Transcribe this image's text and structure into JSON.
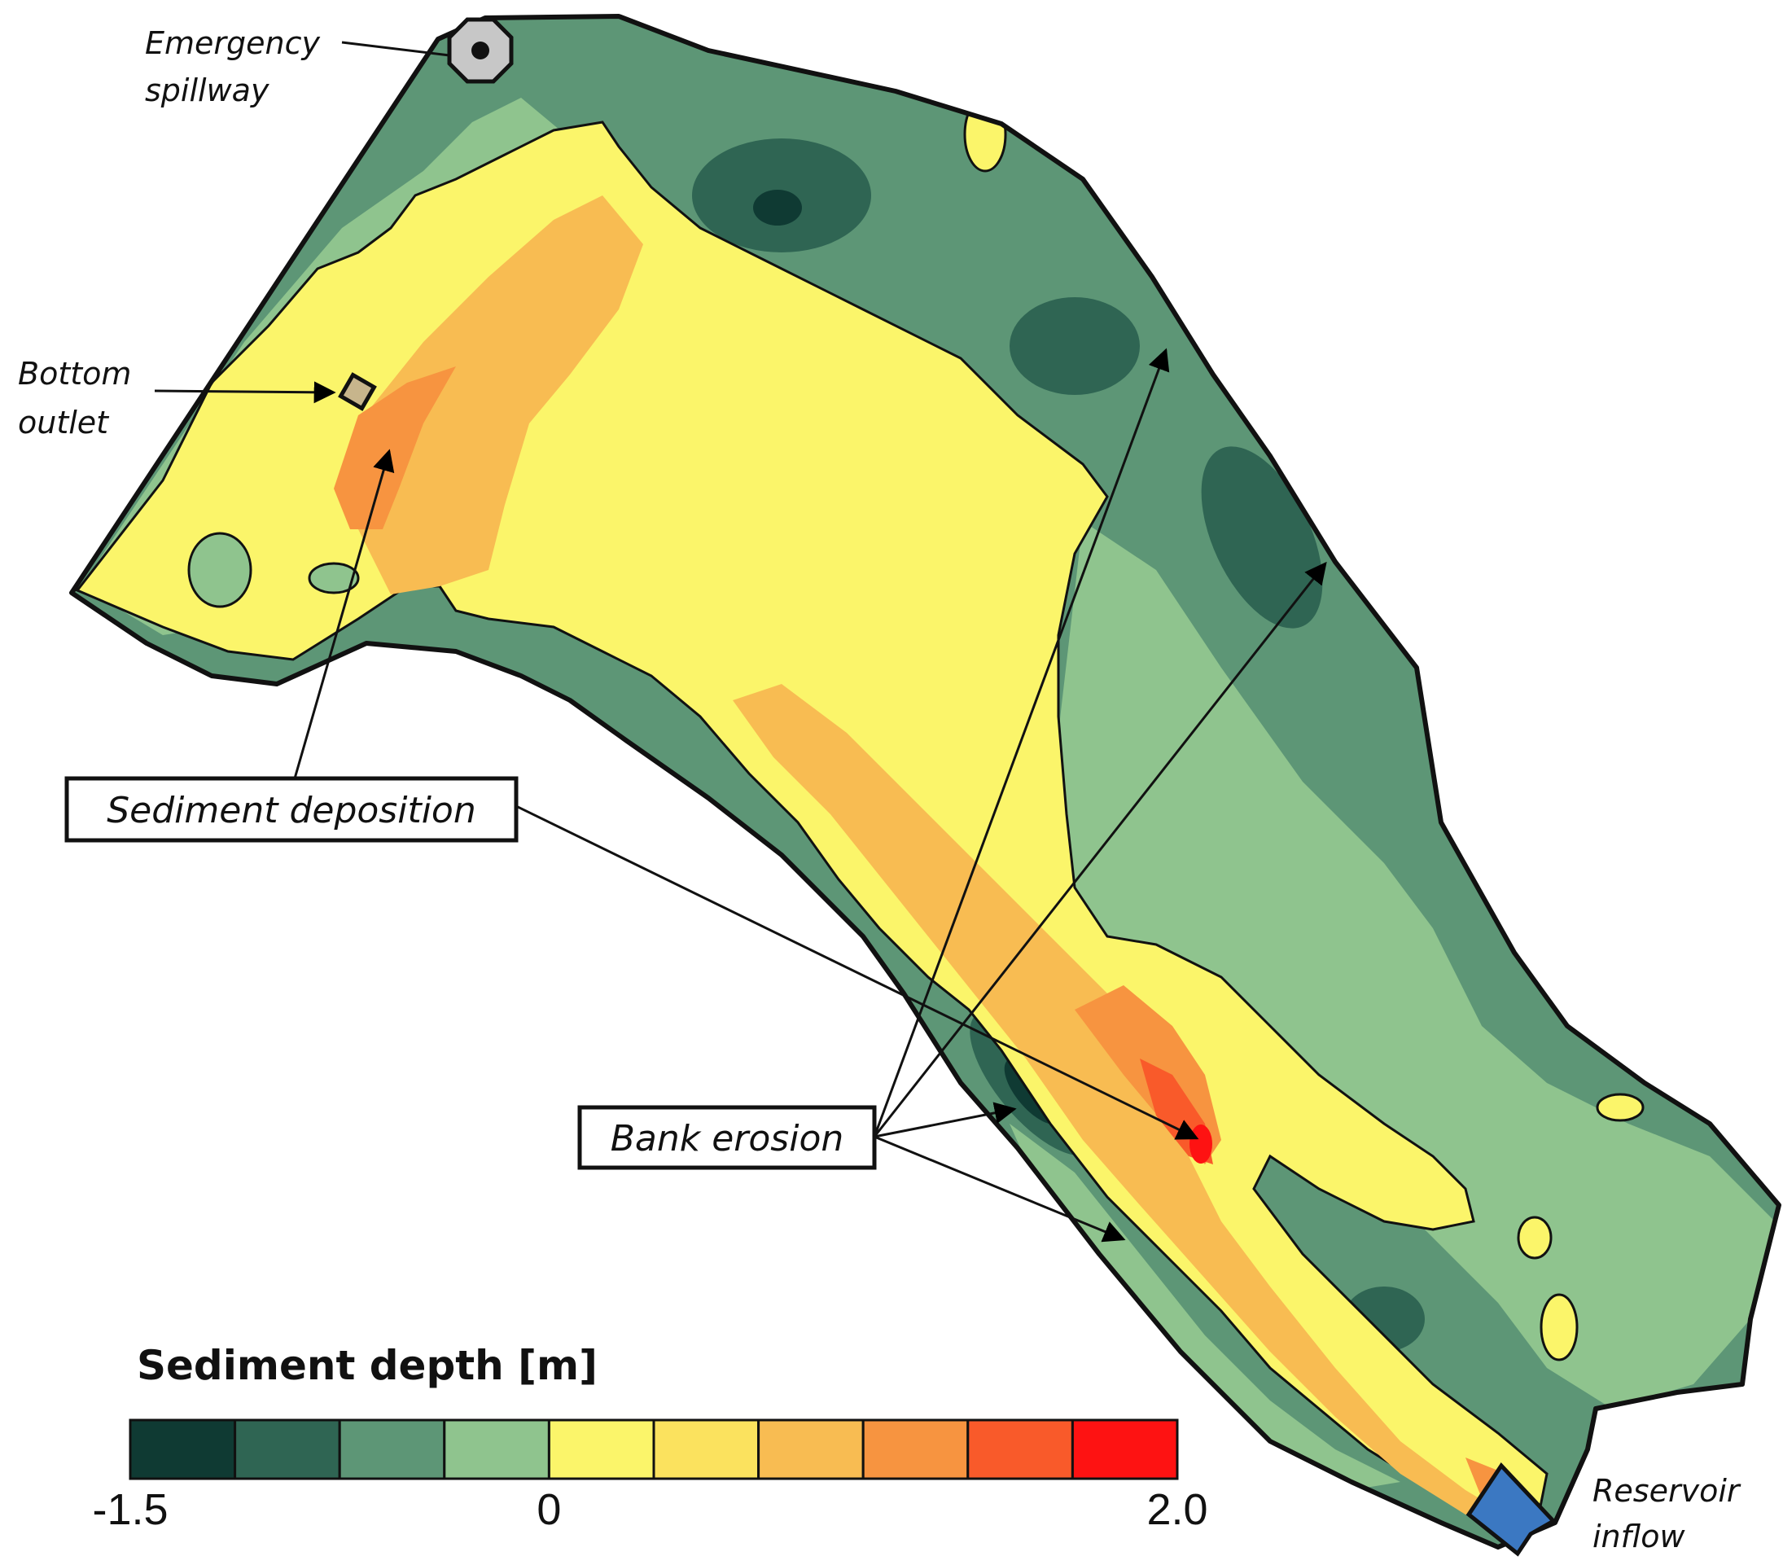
{
  "labels": {
    "emergency_spillway": [
      "Emergency",
      "spillway"
    ],
    "bottom_outlet": [
      "Bottom",
      "outlet"
    ],
    "sediment_deposition": "Sediment deposition",
    "bank_erosion": "Bank erosion",
    "reservoir_inflow": [
      "Reservoir",
      "inflow"
    ]
  },
  "legend": {
    "title": "Sediment depth [m]",
    "colors": [
      "#0f3a33",
      "#2f6553",
      "#5d9676",
      "#8fc48e",
      "#fbf56a",
      "#fbe25e",
      "#f8bc52",
      "#f79440",
      "#f95a2a",
      "#fe1212"
    ],
    "tick_labels": [
      "-1.5",
      "0",
      "2.0"
    ],
    "tick_values": [
      -1.5,
      0,
      2.0
    ],
    "range": [
      -1.5,
      2.0
    ]
  },
  "features": {
    "spillway_icon": "octagon-spillway-icon",
    "outlet_icon": "square-outlet-icon",
    "inflow_icon": "blue-arrow-inflow-icon"
  }
}
